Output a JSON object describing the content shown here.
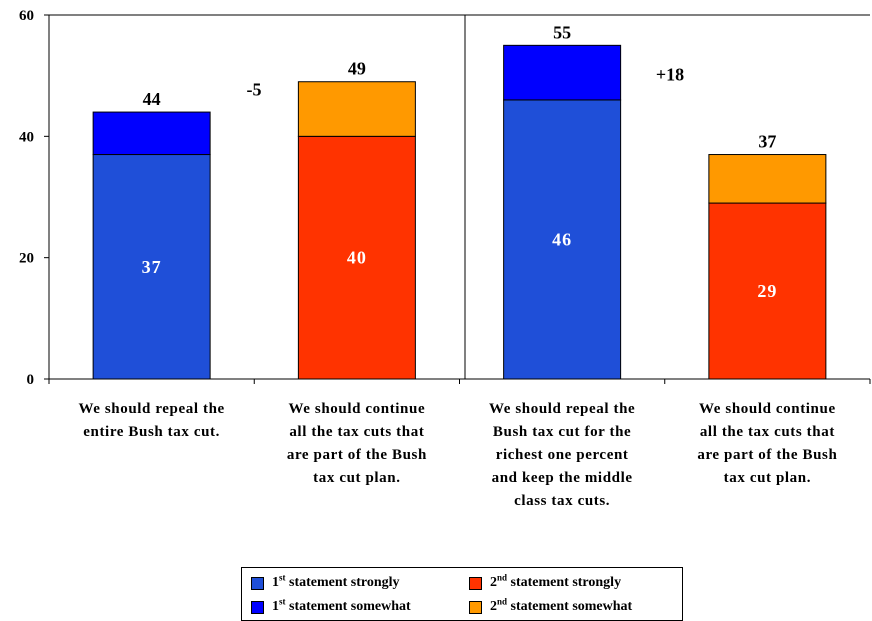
{
  "chart_data": {
    "type": "bar",
    "stacked": true,
    "ylim": [
      0,
      60
    ],
    "yticks": [
      "0",
      "20",
      "40",
      "60"
    ],
    "grid": false,
    "legend_position": "bottom",
    "categories": [
      [
        "We should repeal the",
        "entire Bush tax cut."
      ],
      [
        "We should continue",
        "all the tax cuts that",
        "are part of the Bush",
        "tax cut plan."
      ],
      [
        "We should repeal the",
        "Bush tax cut for the",
        "richest one percent",
        "and keep the middle",
        "class tax cuts."
      ],
      [
        "We should continue",
        "all the tax cuts that",
        "are part of the Bush",
        "tax cut plan."
      ]
    ],
    "bars": [
      {
        "strongly": 37,
        "somewhat": 7,
        "total": 44,
        "statement": "1st",
        "strong_label": "37",
        "total_label": "44"
      },
      {
        "strongly": 40,
        "somewhat": 9,
        "total": 49,
        "statement": "2nd",
        "strong_label": "40",
        "total_label": "49"
      },
      {
        "strongly": 46,
        "somewhat": 9,
        "total": 55,
        "statement": "1st",
        "strong_label": "46",
        "total_label": "55"
      },
      {
        "strongly": 29,
        "somewhat": 8,
        "total": 37,
        "statement": "2nd",
        "strong_label": "29",
        "total_label": "37"
      }
    ],
    "annotations": [
      {
        "text": "-5",
        "group": 1
      },
      {
        "text": "+18",
        "group": 2
      }
    ],
    "legend": [
      {
        "ord": "1",
        "sup": "st",
        "text": " statement strongly",
        "color": "#1F4FD8"
      },
      {
        "ord": "2",
        "sup": "nd",
        "text": " statement strongly",
        "color": "#FF3300"
      },
      {
        "ord": "1",
        "sup": "st",
        "text": " statement somewhat",
        "color": "#0000FF"
      },
      {
        "ord": "2",
        "sup": "nd",
        "text": " statement somewhat",
        "color": "#FF9900"
      }
    ]
  },
  "colors": {
    "first_strongly": "#1F4FD8",
    "first_somewhat": "#0000FF",
    "second_strongly": "#FF3300",
    "second_somewhat": "#FF9900"
  }
}
